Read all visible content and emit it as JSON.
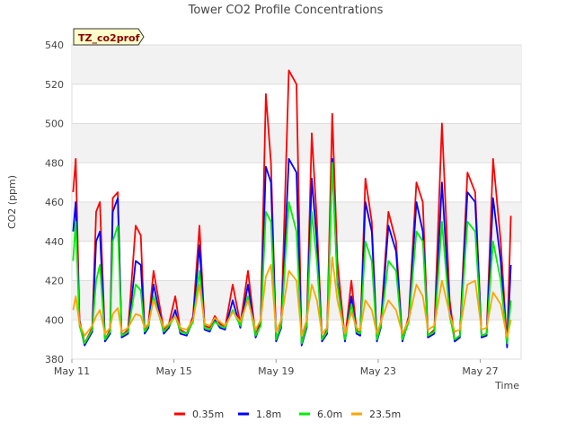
{
  "chart_data": {
    "type": "line",
    "title": "Tower CO2 Profile Concentrations",
    "badge": "TZ_co2prof",
    "xlabel": "Time",
    "ylabel": "CO2 (ppm)",
    "xlim": [
      11,
      28.6
    ],
    "ylim": [
      380,
      540
    ],
    "y_ticks": [
      380,
      400,
      420,
      440,
      460,
      480,
      500,
      520,
      540
    ],
    "x_ticks": [
      {
        "value": 11,
        "label": "May 11"
      },
      {
        "value": 15,
        "label": "May 15"
      },
      {
        "value": 19,
        "label": "May 19"
      },
      {
        "value": 23,
        "label": "May 23"
      },
      {
        "value": 27,
        "label": "May 27"
      }
    ],
    "grid": true,
    "legend_position": "bottom",
    "series": [
      {
        "name": "0.35m",
        "color": "#ff0000",
        "x": [
          11.05,
          11.15,
          11.3,
          11.5,
          11.8,
          11.95,
          12.1,
          12.3,
          12.5,
          12.6,
          12.8,
          12.95,
          13.2,
          13.5,
          13.7,
          13.85,
          14.0,
          14.2,
          14.6,
          14.8,
          15.05,
          15.25,
          15.5,
          15.75,
          16.0,
          16.2,
          16.4,
          16.6,
          16.8,
          17.0,
          17.3,
          17.6,
          17.9,
          18.2,
          18.4,
          18.6,
          18.8,
          19.0,
          19.2,
          19.5,
          19.8,
          20.0,
          20.2,
          20.4,
          20.6,
          20.8,
          21.0,
          21.2,
          21.4,
          21.7,
          21.95,
          22.15,
          22.3,
          22.5,
          22.75,
          22.95,
          23.1,
          23.4,
          23.7,
          23.95,
          24.2,
          24.5,
          24.75,
          24.95,
          25.2,
          25.5,
          25.8,
          26.0,
          26.2,
          26.5,
          26.8,
          27.05,
          27.25,
          27.5,
          27.8,
          28.05,
          28.2
        ],
        "values": [
          465,
          482,
          400,
          388,
          396,
          455,
          460,
          390,
          395,
          462,
          465,
          392,
          395,
          448,
          443,
          394,
          398,
          425,
          395,
          398,
          412,
          395,
          393,
          402,
          448,
          397,
          396,
          402,
          398,
          396,
          418,
          398,
          425,
          392,
          400,
          515,
          480,
          390,
          398,
          527,
          520,
          388,
          398,
          495,
          450,
          390,
          395,
          505,
          430,
          390,
          420,
          395,
          393,
          472,
          450,
          390,
          398,
          455,
          440,
          390,
          402,
          470,
          460,
          392,
          395,
          500,
          410,
          390,
          392,
          475,
          465,
          392,
          393,
          482,
          440,
          387,
          453
        ]
      },
      {
        "name": "1.8m",
        "color": "#0000ff",
        "x": [
          11.05,
          11.15,
          11.3,
          11.5,
          11.8,
          11.95,
          12.1,
          12.3,
          12.5,
          12.6,
          12.8,
          12.95,
          13.2,
          13.5,
          13.7,
          13.85,
          14.0,
          14.2,
          14.6,
          14.8,
          15.05,
          15.25,
          15.5,
          15.75,
          16.0,
          16.2,
          16.4,
          16.6,
          16.8,
          17.0,
          17.3,
          17.6,
          17.9,
          18.2,
          18.4,
          18.6,
          18.8,
          19.0,
          19.2,
          19.5,
          19.8,
          20.0,
          20.2,
          20.4,
          20.6,
          20.8,
          21.0,
          21.2,
          21.4,
          21.7,
          21.95,
          22.15,
          22.3,
          22.5,
          22.75,
          22.95,
          23.1,
          23.4,
          23.7,
          23.95,
          24.2,
          24.5,
          24.75,
          24.95,
          25.2,
          25.5,
          25.8,
          26.0,
          26.2,
          26.5,
          26.8,
          27.05,
          27.25,
          27.5,
          27.8,
          28.05,
          28.2
        ],
        "values": [
          445,
          460,
          398,
          387,
          394,
          440,
          445,
          389,
          393,
          455,
          462,
          391,
          393,
          430,
          428,
          393,
          396,
          418,
          393,
          396,
          405,
          393,
          392,
          400,
          438,
          395,
          394,
          400,
          396,
          395,
          410,
          396,
          418,
          391,
          398,
          478,
          470,
          389,
          396,
          482,
          475,
          387,
          396,
          472,
          440,
          389,
          393,
          482,
          420,
          389,
          412,
          393,
          392,
          460,
          445,
          389,
          396,
          448,
          435,
          389,
          400,
          460,
          445,
          391,
          393,
          470,
          405,
          389,
          391,
          465,
          460,
          391,
          392,
          462,
          430,
          386,
          428
        ]
      },
      {
        "name": "6.0m",
        "color": "#00ee00",
        "x": [
          11.05,
          11.15,
          11.3,
          11.5,
          11.8,
          11.95,
          12.1,
          12.3,
          12.5,
          12.6,
          12.8,
          12.95,
          13.2,
          13.5,
          13.7,
          13.85,
          14.0,
          14.2,
          14.6,
          14.8,
          15.05,
          15.25,
          15.5,
          15.75,
          16.0,
          16.2,
          16.4,
          16.6,
          16.8,
          17.0,
          17.3,
          17.6,
          17.9,
          18.2,
          18.4,
          18.6,
          18.8,
          19.0,
          19.2,
          19.5,
          19.8,
          20.0,
          20.2,
          20.4,
          20.6,
          20.8,
          21.0,
          21.2,
          21.4,
          21.7,
          21.95,
          22.15,
          22.3,
          22.5,
          22.75,
          22.95,
          23.1,
          23.4,
          23.7,
          23.95,
          24.2,
          24.5,
          24.75,
          24.95,
          25.2,
          25.5,
          25.8,
          26.0,
          26.2,
          26.5,
          26.8,
          27.05,
          27.25,
          27.5,
          27.8,
          28.05,
          28.2
        ],
        "values": [
          430,
          450,
          397,
          388,
          395,
          420,
          428,
          390,
          394,
          440,
          448,
          392,
          394,
          418,
          415,
          394,
          397,
          412,
          394,
          397,
          402,
          394,
          393,
          399,
          425,
          396,
          395,
          399,
          397,
          396,
          405,
          397,
          412,
          392,
          397,
          455,
          450,
          390,
          397,
          460,
          445,
          388,
          397,
          455,
          430,
          390,
          394,
          480,
          418,
          390,
          408,
          394,
          393,
          440,
          430,
          390,
          397,
          430,
          425,
          390,
          399,
          445,
          440,
          392,
          394,
          450,
          402,
          390,
          392,
          450,
          445,
          392,
          393,
          440,
          420,
          388,
          410
        ]
      },
      {
        "name": "23.5m",
        "color": "#ffa500",
        "x": [
          11.05,
          11.15,
          11.3,
          11.5,
          11.8,
          11.95,
          12.1,
          12.3,
          12.5,
          12.6,
          12.8,
          12.95,
          13.2,
          13.5,
          13.7,
          13.85,
          14.0,
          14.2,
          14.6,
          14.8,
          15.05,
          15.25,
          15.5,
          15.75,
          16.0,
          16.2,
          16.4,
          16.6,
          16.8,
          17.0,
          17.3,
          17.6,
          17.9,
          18.2,
          18.4,
          18.6,
          18.8,
          19.0,
          19.2,
          19.5,
          19.8,
          20.0,
          20.2,
          20.4,
          20.6,
          20.8,
          21.0,
          21.2,
          21.4,
          21.7,
          21.95,
          22.15,
          22.3,
          22.5,
          22.75,
          22.95,
          23.1,
          23.4,
          23.7,
          23.95,
          24.2,
          24.5,
          24.75,
          24.95,
          25.2,
          25.5,
          25.8,
          26.0,
          26.2,
          26.5,
          26.8,
          27.05,
          27.25,
          27.5,
          27.8,
          28.05,
          28.2
        ],
        "values": [
          405,
          412,
          398,
          392,
          397,
          402,
          405,
          393,
          396,
          403,
          406,
          394,
          396,
          403,
          402,
          396,
          398,
          410,
          396,
          398,
          402,
          396,
          395,
          400,
          418,
          398,
          397,
          401,
          399,
          397,
          404,
          399,
          410,
          395,
          400,
          422,
          428,
          394,
          400,
          425,
          420,
          392,
          400,
          418,
          410,
          393,
          396,
          432,
          410,
          393,
          404,
          396,
          395,
          410,
          405,
          393,
          399,
          410,
          405,
          393,
          400,
          418,
          412,
          395,
          397,
          420,
          403,
          394,
          395,
          418,
          420,
          395,
          396,
          414,
          408,
          391,
          400
        ]
      }
    ]
  }
}
